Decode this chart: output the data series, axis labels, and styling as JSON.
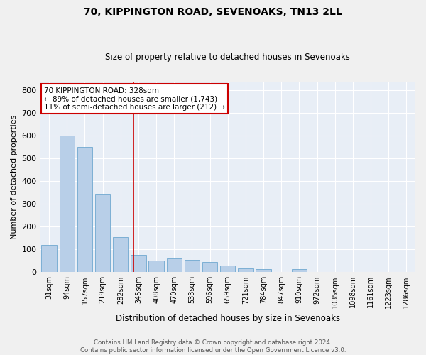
{
  "title": "70, KIPPINGTON ROAD, SEVENOAKS, TN13 2LL",
  "subtitle": "Size of property relative to detached houses in Sevenoaks",
  "xlabel": "Distribution of detached houses by size in Sevenoaks",
  "ylabel": "Number of detached properties",
  "categories": [
    "31sqm",
    "94sqm",
    "157sqm",
    "219sqm",
    "282sqm",
    "345sqm",
    "408sqm",
    "470sqm",
    "533sqm",
    "596sqm",
    "659sqm",
    "721sqm",
    "784sqm",
    "847sqm",
    "910sqm",
    "972sqm",
    "1035sqm",
    "1098sqm",
    "1161sqm",
    "1223sqm",
    "1286sqm"
  ],
  "values": [
    120,
    600,
    550,
    345,
    155,
    75,
    50,
    60,
    55,
    45,
    30,
    18,
    15,
    0,
    12,
    0,
    0,
    0,
    0,
    0,
    0
  ],
  "bar_color": "#b8cfe8",
  "bar_edge_color": "#6fa8d0",
  "background_color": "#e8eef6",
  "grid_color": "#ffffff",
  "vline_color": "#cc0000",
  "ylim": [
    0,
    840
  ],
  "yticks": [
    0,
    100,
    200,
    300,
    400,
    500,
    600,
    700,
    800
  ],
  "vline_x": 4.73,
  "annotation_text": "70 KIPPINGTON ROAD: 328sqm\n← 89% of detached houses are smaller (1,743)\n11% of semi-detached houses are larger (212) →",
  "annotation_box_color": "#cc0000",
  "footer_line1": "Contains HM Land Registry data © Crown copyright and database right 2024.",
  "footer_line2": "Contains public sector information licensed under the Open Government Licence v3.0."
}
